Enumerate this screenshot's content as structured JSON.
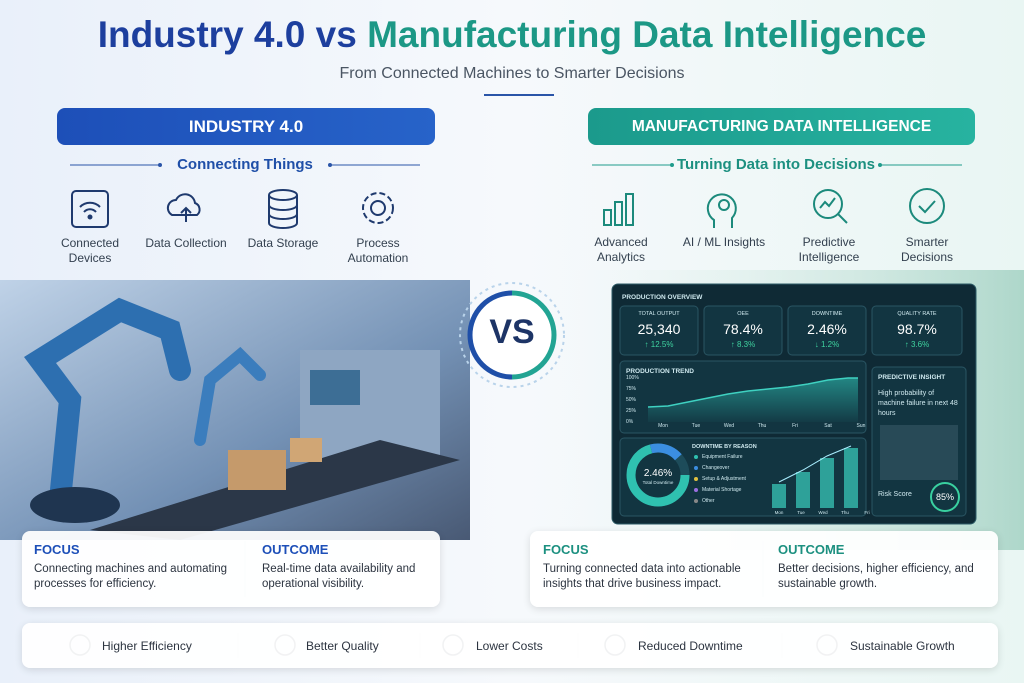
{
  "title": {
    "left": "Industry 4.0",
    "middle": "vs",
    "right": "Manufacturing Data Intelligence"
  },
  "subtitle": "From Connected Machines to Smarter Decisions",
  "left_panel": {
    "header": "INDUSTRY 4.0",
    "subheader": "Connecting Things",
    "items": [
      "Connected Devices",
      "Data Collection",
      "Data Storage",
      "Process Automation"
    ],
    "focus": {
      "label": "FOCUS",
      "text": "Connecting machines and automating processes for efficiency."
    },
    "outcome": {
      "label": "OUTCOME",
      "text": "Real-time data availability and operational visibility."
    }
  },
  "vs": "VS",
  "right_panel": {
    "header": "MANUFACTURING DATA INTELLIGENCE",
    "subheader": "Turning Data into Decisions",
    "items": [
      "Advanced Analytics",
      "AI / ML Insights",
      "Predictive Intelligence",
      "Smarter Decisions"
    ],
    "focus": {
      "label": "FOCUS",
      "text": "Turning connected data into actionable insights that drive business impact."
    },
    "outcome": {
      "label": "OUTCOME",
      "text": "Better decisions, higher efficiency, and sustainable growth."
    }
  },
  "dashboard": {
    "title": "PRODUCTION OVERVIEW",
    "kpis": [
      {
        "label": "TOTAL OUTPUT",
        "value": "25,340",
        "change": "↑ 12.5%"
      },
      {
        "label": "OEE",
        "value": "78.4%",
        "change": "↑ 8.3%"
      },
      {
        "label": "DOWNTIME",
        "value": "2.46%",
        "change": "↓ 1.2%"
      },
      {
        "label": "QUALITY RATE",
        "value": "98.7%",
        "change": "↑ 3.6%"
      }
    ],
    "trend": {
      "title": "PRODUCTION TREND",
      "yticks": [
        "100%",
        "75%",
        "50%",
        "25%",
        "0%"
      ],
      "days": [
        "Mon",
        "Tue",
        "Wed",
        "Thu",
        "Fri",
        "Sat",
        "Sun"
      ]
    },
    "insight": {
      "title": "PREDICTIVE INSIGHT",
      "text": "High probability of machine failure in next 48 hours",
      "risk_label": "Risk Score",
      "risk_value": "85%"
    },
    "downtime": {
      "title": "DOWNTIME BY REASON",
      "center_value": "2.46%",
      "center_label": "Total Downtime",
      "reasons": [
        "Equipment Failure",
        "Changeover",
        "Setup & Adjustment",
        "Material Shortage",
        "Other"
      ]
    },
    "bar_days": [
      "Mon",
      "Tue",
      "Wed",
      "Thu",
      "Fri"
    ]
  },
  "benefits": [
    "Higher Efficiency",
    "Better Quality",
    "Lower Costs",
    "Reduced Downtime",
    "Sustainable Growth"
  ]
}
